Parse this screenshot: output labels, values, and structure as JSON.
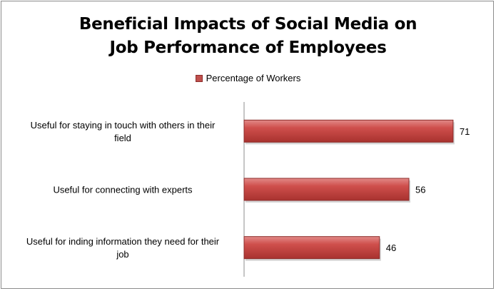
{
  "chart_data": {
    "type": "bar",
    "orientation": "horizontal",
    "title_lines": [
      "Beneficial Impacts of Social Media on",
      "Job Performance of Employees"
    ],
    "legend": {
      "label": "Percentage of Workers",
      "placement": "top"
    },
    "categories": [
      [
        "Useful for staying in touch with others in their",
        "field"
      ],
      [
        "Useful for connecting with experts"
      ],
      [
        "Useful for inding information they need for their",
        "job"
      ]
    ],
    "series": [
      {
        "name": "Percentage of Workers",
        "values": [
          71,
          56,
          46
        ],
        "color": "#c0504d"
      }
    ],
    "xlim": [
      0,
      80
    ],
    "grid": false
  }
}
